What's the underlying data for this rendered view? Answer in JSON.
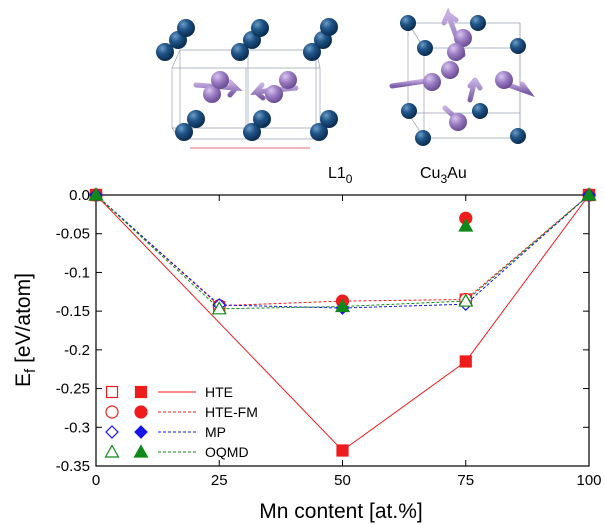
{
  "structures": [
    {
      "label": "L1",
      "sub": "0"
    },
    {
      "label": "Cu",
      "sub": "3",
      "suffix": "Au"
    }
  ],
  "chart_data": {
    "type": "line",
    "xlabel": "Mn content [at.%]",
    "ylabel": "E",
    "ylabel_sub": "f",
    "ylabel_unit": " [eV/atom]",
    "xlim": [
      0,
      100
    ],
    "ylim": [
      -0.35,
      0.0
    ],
    "xticks": [
      0,
      25,
      50,
      75,
      100
    ],
    "xtick_labels": [
      "0",
      "25",
      "50",
      "75",
      "100"
    ],
    "yticks": [
      0.0,
      -0.05,
      -0.1,
      -0.15,
      -0.2,
      -0.25,
      -0.3,
      -0.35
    ],
    "ytick_labels": [
      "0.0",
      "-0.05",
      "-0.1",
      "-0.15",
      "-0.2",
      "-0.25",
      "-0.3",
      "-0.35"
    ],
    "legend_position": "bottom-left",
    "series": [
      {
        "name": "HTE",
        "color": "#ee1c1c",
        "line_style": "solid",
        "marker": "square",
        "hull": {
          "x": [
            0,
            50,
            75,
            100
          ],
          "y": [
            0.0,
            -0.33,
            -0.215,
            0.0
          ]
        },
        "open": {
          "x": [
            0,
            25,
            75,
            100
          ],
          "y": [
            0.0,
            -0.145,
            -0.135,
            0.0
          ]
        },
        "filled": {
          "x": [
            0,
            50,
            75,
            100
          ],
          "y": [
            0.0,
            -0.33,
            -0.215,
            0.0
          ]
        }
      },
      {
        "name": "HTE-FM",
        "color": "#ee1c1c",
        "line_style": "dashed",
        "marker": "circle",
        "hull": {
          "x": [
            0,
            25,
            50,
            75,
            100
          ],
          "y": [
            0.0,
            -0.143,
            -0.137,
            -0.135,
            0.0
          ]
        },
        "open": {
          "x": [
            0,
            25,
            75,
            100
          ],
          "y": [
            0.0,
            -0.143,
            -0.135,
            0.0
          ]
        },
        "filled": {
          "x": [
            0,
            50,
            75,
            100
          ],
          "y": [
            0.0,
            -0.137,
            -0.03,
            0.0
          ]
        }
      },
      {
        "name": "MP",
        "color": "#1515e6",
        "line_style": "dashed",
        "marker": "diamond",
        "hull": {
          "x": [
            0,
            25,
            50,
            75,
            100
          ],
          "y": [
            0.0,
            -0.142,
            -0.146,
            -0.141,
            0.0
          ]
        },
        "open": {
          "x": [
            0,
            25,
            75,
            100
          ],
          "y": [
            0.0,
            -0.142,
            -0.141,
            0.0
          ]
        },
        "filled": {
          "x": [
            0,
            50,
            100
          ],
          "y": [
            0.0,
            -0.146,
            0.0
          ]
        }
      },
      {
        "name": "OQMD",
        "color": "#11881a",
        "line_style": "dashed",
        "marker": "triangle",
        "hull": {
          "x": [
            0,
            25,
            50,
            75,
            100
          ],
          "y": [
            0.0,
            -0.147,
            -0.144,
            -0.137,
            0.0
          ]
        },
        "open": {
          "x": [
            0,
            25,
            75,
            100
          ],
          "y": [
            0.0,
            -0.147,
            -0.137,
            0.0
          ]
        },
        "filled": {
          "x": [
            0,
            50,
            75,
            100
          ],
          "y": [
            0.0,
            -0.144,
            -0.04,
            0.0
          ]
        }
      }
    ]
  }
}
